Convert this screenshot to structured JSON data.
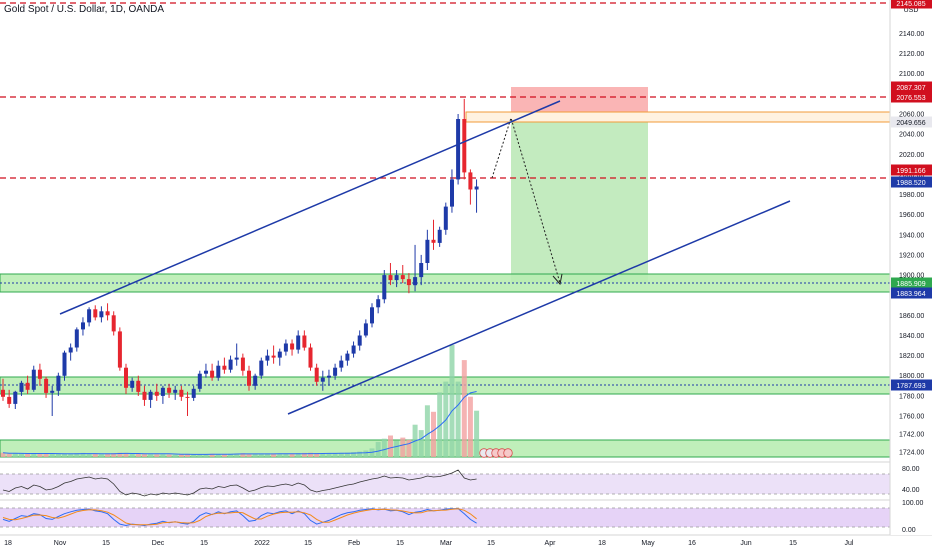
{
  "header": {
    "title": "Gold Spot / U.S. Dollar, 1D, OANDA"
  },
  "axis": {
    "currency": "USD"
  },
  "colors": {
    "bull": "#1e3aa8",
    "bear": "#e6262f",
    "trendline": "#1e3aa8",
    "red_level": "#d10f1f",
    "green_zone_fill": "#b9edb2",
    "green_zone_stroke": "#2fa84f",
    "orange_zone": "#f29b38",
    "risk_box": "#f9a8a8",
    "reward_box": "#bde9b8",
    "rsi_fill": "#ece1f8",
    "stoch_fill": "#e6d3f7"
  },
  "chart_data": {
    "type": "candlestick",
    "title": "Gold Spot / U.S. Dollar, 1D, OANDA",
    "ylim": [
      1714,
      2160
    ],
    "y_ticks": [
      1724,
      1742,
      1760,
      1780,
      1800,
      1820,
      1840,
      1860,
      1880,
      1900,
      1920,
      1940,
      1960,
      1980,
      2000,
      2020,
      2040,
      2060,
      2080,
      2100,
      2120,
      2140
    ],
    "x_ticks": [
      "18",
      "Nov",
      "15",
      "Dec",
      "15",
      "2022",
      "15",
      "Feb",
      "15",
      "Mar",
      "15",
      "Apr",
      "18",
      "May",
      "16",
      "Jun",
      "15",
      "Jul"
    ],
    "price_labels": [
      {
        "value": "2145.085",
        "kind": "red"
      },
      {
        "value": "2087.307",
        "kind": "red"
      },
      {
        "value": "2076.553",
        "kind": "red"
      },
      {
        "value": "2049.656",
        "kind": "grey"
      },
      {
        "value": "1991.166",
        "kind": "red"
      },
      {
        "value": "1988.520",
        "kind": "blue"
      },
      {
        "value": "1885.909",
        "kind": "green"
      },
      {
        "value": "1883.964",
        "kind": "blue"
      },
      {
        "value": "1787.693",
        "kind": "blue"
      }
    ],
    "rsi_ticks": [
      "80.00",
      "40.00"
    ],
    "stoch_ticks": [
      "100.00",
      "0.00"
    ],
    "candles": [
      [
        1786,
        1797,
        1775,
        1779
      ],
      [
        1779,
        1786,
        1768,
        1772
      ],
      [
        1772,
        1785,
        1767,
        1784
      ],
      [
        1784,
        1795,
        1780,
        1793
      ],
      [
        1793,
        1800,
        1782,
        1786
      ],
      [
        1786,
        1810,
        1784,
        1806
      ],
      [
        1806,
        1812,
        1790,
        1797
      ],
      [
        1797,
        1799,
        1778,
        1783
      ],
      [
        1783,
        1790,
        1760,
        1785
      ],
      [
        1785,
        1803,
        1780,
        1800
      ],
      [
        1800,
        1825,
        1795,
        1823
      ],
      [
        1823,
        1832,
        1815,
        1828
      ],
      [
        1828,
        1848,
        1824,
        1846
      ],
      [
        1846,
        1858,
        1840,
        1853
      ],
      [
        1853,
        1868,
        1849,
        1866
      ],
      [
        1866,
        1870,
        1855,
        1858
      ],
      [
        1858,
        1869,
        1853,
        1864
      ],
      [
        1864,
        1872,
        1855,
        1860
      ],
      [
        1860,
        1864,
        1840,
        1844
      ],
      [
        1844,
        1848,
        1805,
        1808
      ],
      [
        1808,
        1812,
        1782,
        1788
      ],
      [
        1788,
        1798,
        1784,
        1795
      ],
      [
        1795,
        1800,
        1780,
        1784
      ],
      [
        1784,
        1790,
        1770,
        1776
      ],
      [
        1776,
        1786,
        1768,
        1784
      ],
      [
        1784,
        1792,
        1775,
        1780
      ],
      [
        1780,
        1790,
        1772,
        1788
      ],
      [
        1788,
        1792,
        1778,
        1783
      ],
      [
        1783,
        1790,
        1776,
        1786
      ],
      [
        1786,
        1790,
        1775,
        1779
      ],
      [
        1779,
        1784,
        1760,
        1778
      ],
      [
        1778,
        1790,
        1775,
        1787
      ],
      [
        1787,
        1805,
        1784,
        1802
      ],
      [
        1802,
        1812,
        1798,
        1805
      ],
      [
        1805,
        1812,
        1795,
        1798
      ],
      [
        1798,
        1815,
        1795,
        1810
      ],
      [
        1810,
        1818,
        1802,
        1806
      ],
      [
        1806,
        1820,
        1803,
        1816
      ],
      [
        1816,
        1832,
        1810,
        1818
      ],
      [
        1818,
        1822,
        1800,
        1805
      ],
      [
        1805,
        1810,
        1785,
        1790
      ],
      [
        1790,
        1802,
        1786,
        1800
      ],
      [
        1800,
        1818,
        1797,
        1815
      ],
      [
        1815,
        1826,
        1810,
        1820
      ],
      [
        1820,
        1830,
        1812,
        1818
      ],
      [
        1818,
        1827,
        1810,
        1824
      ],
      [
        1824,
        1836,
        1820,
        1832
      ],
      [
        1832,
        1836,
        1820,
        1826
      ],
      [
        1826,
        1845,
        1822,
        1840
      ],
      [
        1840,
        1845,
        1825,
        1828
      ],
      [
        1828,
        1832,
        1805,
        1808
      ],
      [
        1808,
        1812,
        1790,
        1794
      ],
      [
        1794,
        1805,
        1785,
        1798
      ],
      [
        1798,
        1806,
        1790,
        1800
      ],
      [
        1800,
        1812,
        1796,
        1808
      ],
      [
        1808,
        1820,
        1804,
        1815
      ],
      [
        1815,
        1825,
        1810,
        1822
      ],
      [
        1822,
        1834,
        1818,
        1830
      ],
      [
        1830,
        1845,
        1825,
        1840
      ],
      [
        1840,
        1856,
        1838,
        1852
      ],
      [
        1852,
        1872,
        1848,
        1868
      ],
      [
        1868,
        1880,
        1862,
        1876
      ],
      [
        1876,
        1905,
        1872,
        1900
      ],
      [
        1900,
        1912,
        1890,
        1895
      ],
      [
        1895,
        1905,
        1888,
        1900
      ],
      [
        1900,
        1910,
        1892,
        1896
      ],
      [
        1896,
        1902,
        1882,
        1890
      ],
      [
        1890,
        1930,
        1884,
        1898
      ],
      [
        1898,
        1920,
        1890,
        1912
      ],
      [
        1912,
        1945,
        1905,
        1935
      ],
      [
        1935,
        1955,
        1925,
        1932
      ],
      [
        1932,
        1948,
        1928,
        1945
      ],
      [
        1945,
        1972,
        1940,
        1968
      ],
      [
        1968,
        2005,
        1962,
        1995
      ],
      [
        1995,
        2060,
        1990,
        2055
      ],
      [
        2055,
        2075,
        1995,
        2002
      ],
      [
        2002,
        2005,
        1970,
        1985
      ],
      [
        1985,
        1995,
        1962,
        1988
      ]
    ],
    "volume": [
      40,
      30,
      35,
      30,
      28,
      32,
      30,
      35,
      30,
      28,
      30,
      32,
      35,
      38,
      30,
      28,
      25,
      30,
      35,
      40,
      38,
      30,
      28,
      26,
      25,
      24,
      25,
      22,
      20,
      22,
      25,
      28,
      26,
      28,
      30,
      25,
      28,
      30,
      32,
      35,
      30,
      28,
      25,
      27,
      30,
      28,
      32,
      30,
      35,
      38,
      40,
      35,
      30,
      32,
      34,
      36,
      40,
      45,
      50,
      60,
      80,
      140,
      170,
      200,
      150,
      180,
      160,
      300,
      250,
      480,
      420,
      600,
      700,
      1040,
      700,
      900,
      560,
      430
    ],
    "rsi": [
      48,
      45,
      52,
      55,
      50,
      58,
      55,
      48,
      50,
      55,
      62,
      65,
      70,
      72,
      74,
      70,
      72,
      70,
      60,
      45,
      38,
      42,
      40,
      36,
      40,
      38,
      42,
      40,
      42,
      40,
      38,
      42,
      50,
      52,
      50,
      55,
      53,
      57,
      58,
      52,
      45,
      48,
      53,
      56,
      55,
      58,
      60,
      57,
      62,
      58,
      48,
      44,
      47,
      49,
      52,
      55,
      58,
      60,
      64,
      67,
      70,
      72,
      76,
      72,
      73,
      72,
      68,
      70,
      72,
      76,
      74,
      75,
      78,
      82,
      88,
      72,
      68,
      70
    ],
    "stoch_k": [
      40,
      30,
      45,
      60,
      55,
      70,
      65,
      45,
      40,
      55,
      70,
      80,
      88,
      92,
      94,
      85,
      80,
      70,
      40,
      15,
      8,
      15,
      12,
      8,
      15,
      20,
      30,
      22,
      28,
      20,
      15,
      30,
      60,
      75,
      65,
      80,
      70,
      80,
      85,
      60,
      30,
      35,
      60,
      75,
      70,
      80,
      85,
      70,
      85,
      70,
      35,
      15,
      25,
      35,
      50,
      65,
      75,
      80,
      88,
      92,
      95,
      90,
      94,
      85,
      88,
      80,
      65,
      78,
      82,
      92,
      85,
      88,
      94,
      96,
      97,
      70,
      40,
      20
    ],
    "stoch_d": [
      50,
      40,
      38,
      45,
      53,
      62,
      63,
      60,
      50,
      47,
      55,
      68,
      80,
      87,
      91,
      90,
      86,
      78,
      63,
      42,
      21,
      13,
      12,
      12,
      12,
      14,
      22,
      24,
      27,
      23,
      21,
      22,
      35,
      55,
      67,
      73,
      72,
      74,
      78,
      75,
      58,
      42,
      42,
      57,
      68,
      75,
      78,
      78,
      80,
      75,
      63,
      40,
      25,
      25,
      37,
      50,
      63,
      73,
      81,
      87,
      92,
      92,
      93,
      90,
      89,
      84,
      78,
      74,
      75,
      84,
      86,
      88,
      89,
      93,
      96,
      88,
      69,
      43
    ]
  }
}
